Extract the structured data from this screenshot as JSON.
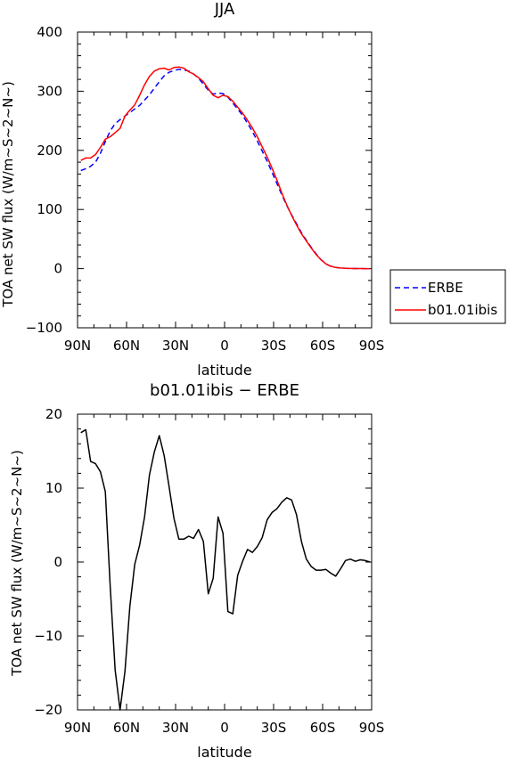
{
  "chart_data": [
    {
      "type": "line",
      "title": "JJA",
      "xlabel": "latitude",
      "ylabel": "TOA net SW flux (W/m~S~2~N~)",
      "xlim": [
        90,
        -90
      ],
      "ylim": [
        -100,
        400
      ],
      "x_ticks": [
        90,
        60,
        30,
        0,
        -30,
        -60,
        -90
      ],
      "x_tick_labels": [
        "90N",
        "60N",
        "30N",
        "0",
        "30S",
        "60S",
        "90S"
      ],
      "y_ticks": [
        -100,
        0,
        100,
        200,
        300,
        400
      ],
      "y_tick_labels": [
        "−100",
        "0",
        "100",
        "200",
        "300",
        "400"
      ],
      "legend_position": "outside-right",
      "series": [
        {
          "name": "ERBE",
          "color": "#0000ff",
          "dash": "dashed",
          "x": [
            88,
            85,
            82,
            79,
            76,
            73,
            70,
            67,
            64,
            61,
            58,
            55,
            52,
            49,
            46,
            43,
            40,
            37,
            34,
            31,
            28,
            25,
            22,
            19,
            16,
            13,
            10,
            7,
            4,
            1,
            -2,
            -5,
            -8,
            -11,
            -14,
            -17,
            -20,
            -23,
            -26,
            -29,
            -32,
            -35,
            -38,
            -41,
            -44,
            -47,
            -50,
            -53,
            -56,
            -59,
            -62,
            -65,
            -68,
            -71,
            -74,
            -77,
            -80,
            -83,
            -86,
            -89
          ],
          "y": [
            166,
            169,
            173,
            180,
            195,
            215,
            233,
            245,
            252,
            258,
            264,
            270,
            276,
            285,
            294,
            305,
            316,
            326,
            332,
            335,
            337,
            336,
            334,
            329,
            322,
            312,
            302,
            295,
            297,
            296,
            290,
            280,
            270,
            259,
            246,
            232,
            216,
            199,
            182,
            163,
            144,
            125,
            107,
            91,
            76,
            61,
            48,
            36,
            25,
            15,
            8,
            4,
            2,
            1,
            0.5,
            0.3,
            0.2,
            0.1,
            0,
            0
          ]
        },
        {
          "name": "b01.01ibis",
          "color": "#ff0000",
          "dash": "solid",
          "x": [
            88,
            85,
            82,
            79,
            76,
            73,
            70,
            67,
            64,
            61,
            58,
            55,
            52,
            49,
            46,
            43,
            40,
            37,
            34,
            31,
            28,
            25,
            22,
            19,
            16,
            13,
            10,
            7,
            4,
            1,
            -2,
            -5,
            -8,
            -11,
            -14,
            -17,
            -20,
            -23,
            -26,
            -29,
            -32,
            -35,
            -38,
            -41,
            -44,
            -47,
            -50,
            -53,
            -56,
            -59,
            -62,
            -65,
            -68,
            -71,
            -74,
            -77,
            -80,
            -83,
            -86,
            -89
          ],
          "y": [
            183,
            187,
            187,
            193,
            205,
            219,
            223,
            230,
            237,
            258,
            268,
            277,
            293,
            311,
            325,
            334,
            338,
            339,
            336,
            340,
            341,
            339,
            333,
            329,
            323,
            316,
            304,
            293,
            289,
            293,
            291,
            283,
            273,
            263,
            251,
            238,
            223,
            206,
            189,
            170,
            150,
            128,
            108,
            90,
            74,
            59,
            47,
            35,
            24,
            15,
            8,
            4,
            2,
            1,
            0.5,
            0.3,
            0.2,
            0.1,
            0,
            0
          ]
        }
      ]
    },
    {
      "type": "line",
      "title": "b01.01ibis − ERBE",
      "xlabel": "latitude",
      "ylabel": "TOA net SW flux (W/m~S~2~N~)",
      "xlim": [
        90,
        -90
      ],
      "ylim": [
        -20,
        20
      ],
      "x_ticks": [
        90,
        60,
        30,
        0,
        -30,
        -60,
        -90
      ],
      "x_tick_labels": [
        "90N",
        "60N",
        "30N",
        "0",
        "30S",
        "60S",
        "90S"
      ],
      "y_ticks": [
        -20,
        -10,
        0,
        10,
        20
      ],
      "y_tick_labels": [
        "−20",
        "−10",
        "0",
        "10",
        "20"
      ],
      "series": [
        {
          "color": "#000000",
          "dash": "solid",
          "x": [
            88,
            85,
            82,
            79,
            76,
            73,
            70,
            67,
            64,
            61,
            58,
            55,
            52,
            49,
            46,
            43,
            40,
            37,
            34,
            31,
            28,
            25,
            22,
            19,
            16,
            13,
            10,
            7,
            4,
            1,
            -2,
            -5,
            -8,
            -11,
            -14,
            -17,
            -20,
            -23,
            -26,
            -29,
            -32,
            -35,
            -38,
            -41,
            -44,
            -47,
            -50,
            -53,
            -56,
            -59,
            -62,
            -65,
            -68,
            -71,
            -74,
            -77,
            -80,
            -83,
            -86,
            -89
          ],
          "y": [
            17.5,
            17.9,
            13.6,
            13.3,
            12.2,
            9.5,
            -3.4,
            -14.6,
            -20,
            -14.8,
            -6,
            -0.3,
            2.3,
            6.1,
            11.8,
            14.9,
            17.1,
            14.4,
            10.2,
            5.9,
            3.1,
            3.1,
            3.5,
            3.2,
            4.4,
            2.8,
            -4.3,
            -2.2,
            6.1,
            3.9,
            -6.7,
            -7,
            -1.8,
            0.1,
            1.7,
            1.3,
            2.1,
            3.3,
            5.7,
            6.7,
            7.2,
            8.1,
            8.7,
            8.4,
            6.4,
            2.8,
            0.4,
            -0.6,
            -1.1,
            -1.1,
            -1,
            -1.5,
            -1.9,
            -0.9,
            0.2,
            0.4,
            0.1,
            0.3,
            0.2,
            0
          ]
        }
      ]
    }
  ]
}
